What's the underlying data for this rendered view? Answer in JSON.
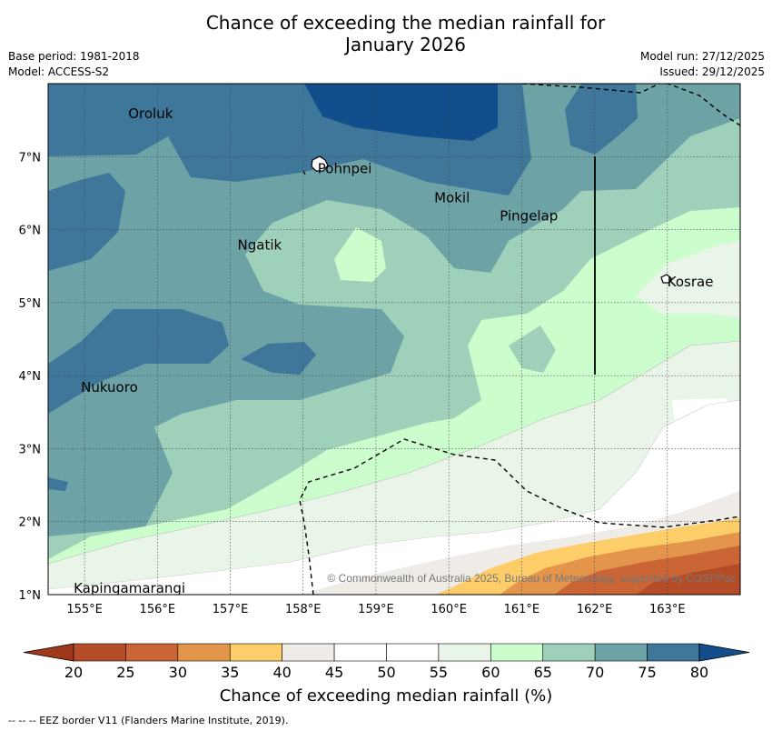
{
  "title": {
    "line1": "Chance of exceeding the median rainfall for",
    "line2": "January 2026"
  },
  "info_left": {
    "base_period": "Base period: 1981-2018",
    "model": "Model: ACCESS-S2"
  },
  "info_right": {
    "model_run": "Model run: 27/12/2025",
    "issued": "Issued: 29/12/2025"
  },
  "map": {
    "lon_ticks": [
      "155°E",
      "156°E",
      "157°E",
      "158°E",
      "159°E",
      "160°E",
      "161°E",
      "162°E",
      "163°E"
    ],
    "lon_values": [
      155,
      156,
      157,
      158,
      159,
      160,
      161,
      162,
      163
    ],
    "lat_ticks": [
      "7°N",
      "6°N",
      "5°N",
      "4°N",
      "3°N",
      "2°N",
      "1°N"
    ],
    "lat_values": [
      7,
      6,
      5,
      4,
      3,
      2,
      1
    ],
    "lon_range": [
      154.5,
      164.0
    ],
    "lat_range": [
      1.0,
      8.0
    ],
    "places": [
      {
        "name": "Oroluk",
        "lon": 155.6,
        "lat": 7.6
      },
      {
        "name": "Pohnpei",
        "lon": 158.2,
        "lat": 6.85
      },
      {
        "name": "Mokil",
        "lon": 159.8,
        "lat": 6.45
      },
      {
        "name": "Pingelap",
        "lon": 160.7,
        "lat": 6.2
      },
      {
        "name": "Ngatik",
        "lon": 157.1,
        "lat": 5.8
      },
      {
        "name": "Kosrae",
        "lon": 163.0,
        "lat": 5.3
      },
      {
        "name": "Nukuoro",
        "lon": 154.95,
        "lat": 3.85
      },
      {
        "name": "Kapingamarangi",
        "lon": 154.85,
        "lat": 1.1
      }
    ],
    "copyright": "© Commonwealth of Australia 2025, Bureau of Meteorology, supported by COSPPac"
  },
  "colorbar": {
    "title": "Chance of exceeding median rainfall (%)",
    "ticks": [
      "20",
      "25",
      "30",
      "35",
      "40",
      "45",
      "50",
      "55",
      "60",
      "65",
      "70",
      "75",
      "80"
    ],
    "colors": [
      "#a0391c",
      "#b44c27",
      "#cb6535",
      "#e2954b",
      "#fdcd6a",
      "#efece7",
      "#ffffff",
      "#ffffff",
      "#eaf5e9",
      "#ccfdcc",
      "#9fd1ba",
      "#6da3a6",
      "#3e779a",
      "#134e8c"
    ]
  },
  "footer": "--  --  -- EEZ border V11 (Flanders Marine Institute, 2019)."
}
